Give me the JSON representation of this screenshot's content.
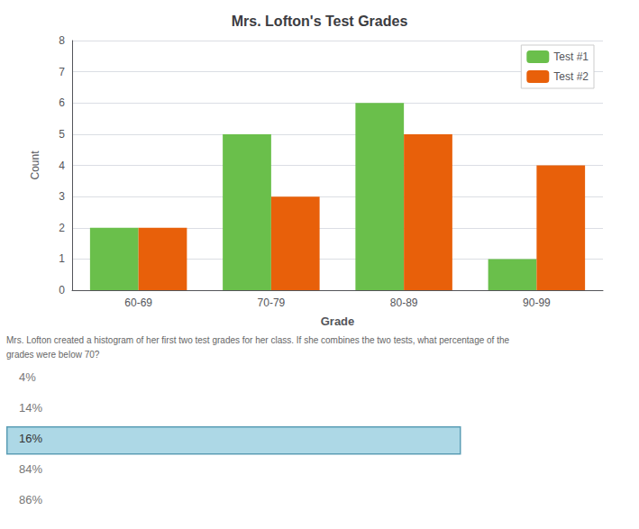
{
  "chart_data": {
    "type": "bar",
    "title": "Mrs. Lofton's Test Grades",
    "categories": [
      "60-69",
      "70-79",
      "80-89",
      "90-99"
    ],
    "series": [
      {
        "name": "Test #1",
        "color": "#6abf4b",
        "values": [
          2,
          5,
          6,
          1
        ]
      },
      {
        "name": "Test #2",
        "color": "#e8600a",
        "values": [
          2,
          3,
          5,
          4
        ]
      }
    ],
    "xlabel": "Grade",
    "ylabel": "Count",
    "ylim": [
      0,
      8
    ],
    "yticks": [
      0,
      1,
      2,
      3,
      4,
      5,
      6,
      7,
      8
    ],
    "grid": true,
    "legend": "upper right",
    "annotations": [
      "Mrs. Lofton created a histogram of her first two test grades for her class. If she combines the two tests, what percentage of the",
      "grades were below 70?"
    ],
    "answer_options": [
      {
        "text": "4%"
      },
      {
        "text": "14%"
      },
      {
        "text": "16%",
        "color": "#add8e6"
      },
      {
        "text": "84%"
      },
      {
        "text": "86%"
      }
    ]
  }
}
